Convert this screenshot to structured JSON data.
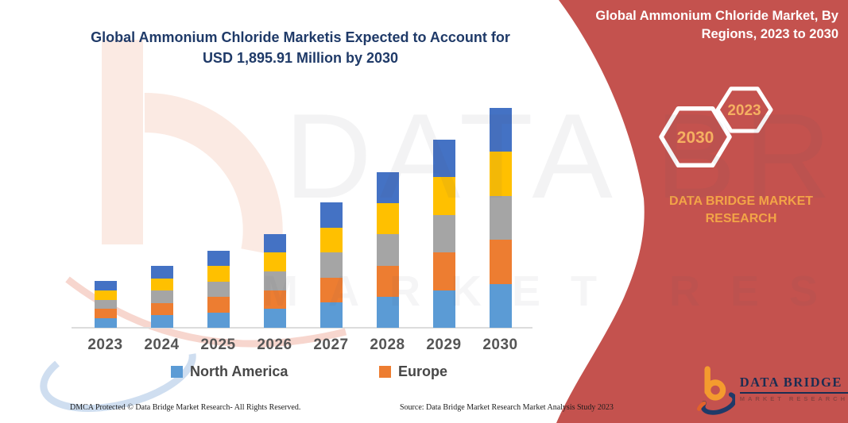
{
  "colors": {
    "panel_red": "#c4524e",
    "title_navy": "#1f3a68",
    "gold": "#f2a447",
    "hex_year_gold": "#f5b061",
    "logo_navy": "#1b2d52",
    "logo_orange": "#f49b2e"
  },
  "chart": {
    "title_line1": "Global Ammonium Chloride Marketis Expected to Account for",
    "title_line2": "USD 1,895.91 Million by 2030",
    "legend": [
      {
        "label": "North America",
        "color": "#5b9bd5"
      },
      {
        "label": "Europe",
        "color": "#ed7d31"
      }
    ]
  },
  "chart_data": {
    "type": "bar",
    "stacked": true,
    "title": "Global Ammonium Chloride Marketis Expected to Account for USD 1,895.91 Million by 2030",
    "categories": [
      "2023",
      "2024",
      "2025",
      "2026",
      "2027",
      "2028",
      "2029",
      "2030"
    ],
    "series": [
      {
        "name": "North America",
        "color": "#5b9bd5",
        "values": [
          81,
          107,
          133,
          162,
          216,
          268,
          324,
          379
        ]
      },
      {
        "name": "Europe",
        "color": "#ed7d31",
        "values": [
          81,
          107,
          133,
          162,
          216,
          268,
          324,
          379
        ]
      },
      {
        "name": "Unlabeled (gray)",
        "color": "#a5a5a5",
        "values": [
          81,
          107,
          133,
          162,
          216,
          268,
          324,
          379
        ]
      },
      {
        "name": "Unlabeled (yellow)",
        "color": "#ffc000",
        "values": [
          81,
          107,
          133,
          162,
          216,
          268,
          324,
          379
        ]
      },
      {
        "name": "Unlabeled (dark blue)",
        "color": "#4472c4",
        "values": [
          81,
          107,
          133,
          162,
          216,
          268,
          324,
          379
        ]
      }
    ],
    "totals_estimated_musd": [
      405,
      535,
      665,
      810,
      1080,
      1340,
      1620,
      1895.91
    ],
    "legend_visible": [
      "North America",
      "Europe"
    ],
    "xlabel": "",
    "ylabel": "",
    "y_axis_shown": false,
    "grid": false,
    "legend_position": "bottom"
  },
  "panel": {
    "title_line1": "Global Ammonium Chloride Market, By",
    "title_line2": "Regions, 2023 to 2030",
    "hexagon_large_label": "2030",
    "hexagon_small_label": "2023",
    "brand_line1": "DATA BRIDGE MARKET",
    "brand_line2": "RESEARCH"
  },
  "logo": {
    "name": "DATA BRIDGE",
    "subtitle": "MARKET RESEARCH"
  },
  "watermark": {
    "big_text": "DATA BRIDGE",
    "spaced_text": "MARKET RESEARCH"
  },
  "footer": {
    "left": "DMCA Protected © Data Bridge Market Research-  All Rights Reserved.",
    "right": "Source: Data Bridge Market Research  Market Analysis Study 2023"
  }
}
